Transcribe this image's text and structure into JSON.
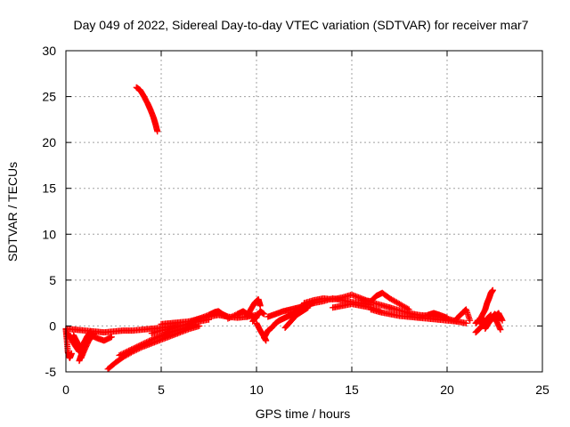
{
  "chart_data": {
    "type": "scatter",
    "title": "Day 049 of 2022, Sidereal Day-to-day VTEC variation (SDTVAR) for receiver mar7",
    "xlabel": "GPS time / hours",
    "ylabel": "SDTVAR / TECUs",
    "xlim": [
      0,
      25
    ],
    "ylim": [
      -5,
      30
    ],
    "xticks": [
      0,
      5,
      10,
      15,
      20,
      25
    ],
    "yticks": [
      -5,
      0,
      5,
      10,
      15,
      20,
      25,
      30
    ],
    "grid": true,
    "marker": "+",
    "series": [
      {
        "name": "SDTVAR",
        "color": "#ff0000",
        "tracks": [
          {
            "x": [
              3.7,
              3.9,
              4.1,
              4.3,
              4.45,
              4.6,
              4.7,
              4.8
            ],
            "y": [
              26.0,
              25.7,
              25.0,
              24.2,
              23.5,
              22.7,
              22.0,
              21.2
            ]
          },
          {
            "x": [
              0.0,
              0.05,
              0.1,
              0.2,
              0.3
            ],
            "y": [
              -0.4,
              -1.5,
              -2.8,
              -3.5,
              -3.0
            ]
          },
          {
            "x": [
              0.1,
              0.3,
              0.5,
              0.7,
              0.9,
              1.1,
              1.3
            ],
            "y": [
              -0.8,
              -1.5,
              -2.2,
              -2.8,
              -2.0,
              -1.2,
              -0.6
            ]
          },
          {
            "x": [
              0.4,
              0.6,
              0.8,
              1.0,
              1.2
            ],
            "y": [
              -1.0,
              -1.8,
              -2.5,
              -2.0,
              -1.3
            ]
          },
          {
            "x": [
              0.8,
              1.0,
              1.2,
              1.4,
              1.5
            ],
            "y": [
              -3.5,
              -2.5,
              -1.6,
              -1.0,
              -0.8
            ]
          },
          {
            "x": [
              0.7,
              0.8,
              0.9
            ],
            "y": [
              -3.8,
              -3.2,
              -2.8
            ]
          },
          {
            "x": [
              0.0,
              0.5,
              1.0,
              1.5,
              2.0,
              2.5,
              3.0,
              3.5,
              4.0,
              4.5,
              5.0,
              5.5,
              6.0
            ],
            "y": [
              -0.3,
              -0.4,
              -0.5,
              -0.6,
              -0.7,
              -0.6,
              -0.5,
              -0.5,
              -0.4,
              -0.3,
              -0.2,
              -0.1,
              0.0
            ]
          },
          {
            "x": [
              1.2,
              1.6,
              2.0,
              2.4
            ],
            "y": [
              -0.9,
              -1.3,
              -1.6,
              -1.2
            ]
          },
          {
            "x": [
              2.2,
              2.6,
              3.0,
              3.5,
              4.0,
              4.5,
              5.0,
              5.5,
              6.0,
              6.5,
              7.0
            ],
            "y": [
              -4.7,
              -4.0,
              -3.4,
              -2.8,
              -2.3,
              -1.9,
              -1.5,
              -1.1,
              -0.7,
              -0.3,
              0.0
            ]
          },
          {
            "x": [
              2.8,
              3.3,
              3.8,
              4.3,
              4.8,
              5.3,
              5.8,
              6.3,
              6.8
            ],
            "y": [
              -3.2,
              -2.7,
              -2.2,
              -1.7,
              -1.2,
              -0.8,
              -0.5,
              -0.2,
              0.1
            ]
          },
          {
            "x": [
              4.5,
              5.0,
              5.5,
              6.0,
              6.5,
              7.0,
              7.5
            ],
            "y": [
              -0.8,
              -0.5,
              -0.3,
              0.0,
              0.3,
              0.5,
              0.7
            ]
          },
          {
            "x": [
              5.0,
              5.5,
              6.0,
              6.5,
              7.0,
              7.5,
              8.0,
              8.5,
              9.0,
              9.5,
              10.0
            ],
            "y": [
              0.2,
              0.3,
              0.4,
              0.5,
              0.8,
              1.0,
              1.2,
              1.0,
              0.9,
              1.0,
              1.2
            ]
          },
          {
            "x": [
              6.5,
              7.0,
              7.5,
              7.8,
              8.0,
              8.2,
              8.5
            ],
            "y": [
              0.5,
              0.8,
              1.2,
              1.5,
              1.6,
              1.3,
              1.0
            ]
          },
          {
            "x": [
              8.5,
              9.0,
              9.3,
              9.6,
              10.0
            ],
            "y": [
              0.8,
              1.3,
              1.6,
              1.2,
              0.9
            ]
          },
          {
            "x": [
              9.5,
              9.7,
              9.9,
              10.1,
              10.2
            ],
            "y": [
              1.0,
              1.8,
              2.5,
              2.9,
              2.2
            ]
          },
          {
            "x": [
              9.8,
              10.0,
              10.2,
              10.4
            ],
            "y": [
              0.5,
              1.0,
              1.6,
              1.3
            ]
          },
          {
            "x": [
              10.0,
              10.2,
              10.4,
              10.5
            ],
            "y": [
              0.3,
              -0.5,
              -1.2,
              -1.6
            ]
          },
          {
            "x": [
              10.4,
              10.6,
              10.8,
              11.0,
              11.2,
              11.4,
              11.6,
              11.8,
              12.0
            ],
            "y": [
              -1.3,
              -0.5,
              -0.2,
              0.3,
              0.6,
              0.8,
              1.0,
              1.2,
              1.4
            ]
          },
          {
            "x": [
              10.6,
              11.0,
              11.4,
              11.8,
              12.2,
              12.6,
              13.0
            ],
            "y": [
              1.0,
              1.3,
              1.6,
              1.8,
              2.0,
              2.3,
              2.5
            ]
          },
          {
            "x": [
              11.5,
              11.8,
              12.1,
              12.4,
              12.7
            ],
            "y": [
              -0.2,
              0.5,
              1.2,
              1.6,
              2.0
            ]
          },
          {
            "x": [
              12.0,
              12.5,
              13.0,
              13.5,
              14.0,
              14.5,
              15.0,
              15.5,
              16.0
            ],
            "y": [
              1.5,
              2.2,
              2.5,
              2.7,
              3.0,
              2.8,
              2.6,
              2.5,
              2.3
            ]
          },
          {
            "x": [
              12.5,
              13.0,
              13.5,
              14.0,
              14.5,
              15.0,
              15.5,
              16.0,
              16.5,
              17.0
            ],
            "y": [
              2.5,
              2.8,
              3.0,
              2.9,
              3.1,
              3.4,
              3.0,
              2.6,
              2.3,
              2.0
            ]
          },
          {
            "x": [
              14.0,
              14.5,
              15.0,
              15.5,
              16.0,
              16.5
            ],
            "y": [
              2.0,
              2.2,
              2.4,
              2.2,
              2.0,
              1.6
            ]
          },
          {
            "x": [
              15.5,
              16.0,
              16.3,
              16.6,
              17.0,
              17.5,
              18.0
            ],
            "y": [
              2.8,
              2.7,
              3.3,
              3.6,
              3.0,
              2.4,
              1.8
            ]
          },
          {
            "x": [
              16.0,
              16.5,
              17.0,
              17.5,
              18.0,
              18.5,
              19.0,
              19.5,
              20.0,
              20.5
            ],
            "y": [
              1.8,
              1.5,
              1.3,
              1.1,
              1.0,
              0.9,
              0.8,
              0.7,
              0.6,
              0.5
            ]
          },
          {
            "x": [
              17.0,
              17.5,
              18.0,
              18.5,
              19.0,
              19.5,
              20.0,
              20.5,
              21.0
            ],
            "y": [
              2.0,
              1.7,
              1.4,
              1.2,
              1.1,
              1.0,
              0.8,
              0.5,
              0.3
            ]
          },
          {
            "x": [
              18.5,
              19.0,
              19.3,
              19.6,
              20.0
            ],
            "y": [
              0.9,
              1.2,
              1.4,
              1.2,
              0.9
            ]
          },
          {
            "x": [
              20.5,
              20.8,
              21.0,
              21.2
            ],
            "y": [
              0.8,
              1.4,
              1.8,
              0.6
            ]
          },
          {
            "x": [
              21.5,
              21.7,
              21.9,
              22.1,
              22.3
            ],
            "y": [
              -0.7,
              -0.3,
              0.2,
              0.8,
              1.2
            ]
          },
          {
            "x": [
              21.8,
              22.0,
              22.1,
              22.2,
              22.3,
              22.4
            ],
            "y": [
              1.0,
              1.8,
              2.5,
              3.0,
              3.6,
              3.9
            ]
          },
          {
            "x": [
              21.6,
              21.9,
              22.2,
              22.5,
              22.8
            ],
            "y": [
              0.6,
              0.2,
              0.6,
              1.3,
              0.8
            ]
          },
          {
            "x": [
              22.0,
              22.2,
              22.4,
              22.6,
              22.8
            ],
            "y": [
              -0.3,
              0.4,
              1.0,
              0.5,
              -0.4
            ]
          },
          {
            "x": [
              21.5,
              21.8,
              22.1,
              22.4,
              22.7,
              22.9
            ],
            "y": [
              0.3,
              0.9,
              0.2,
              0.8,
              1.4,
              0.6
            ]
          }
        ]
      }
    ]
  }
}
